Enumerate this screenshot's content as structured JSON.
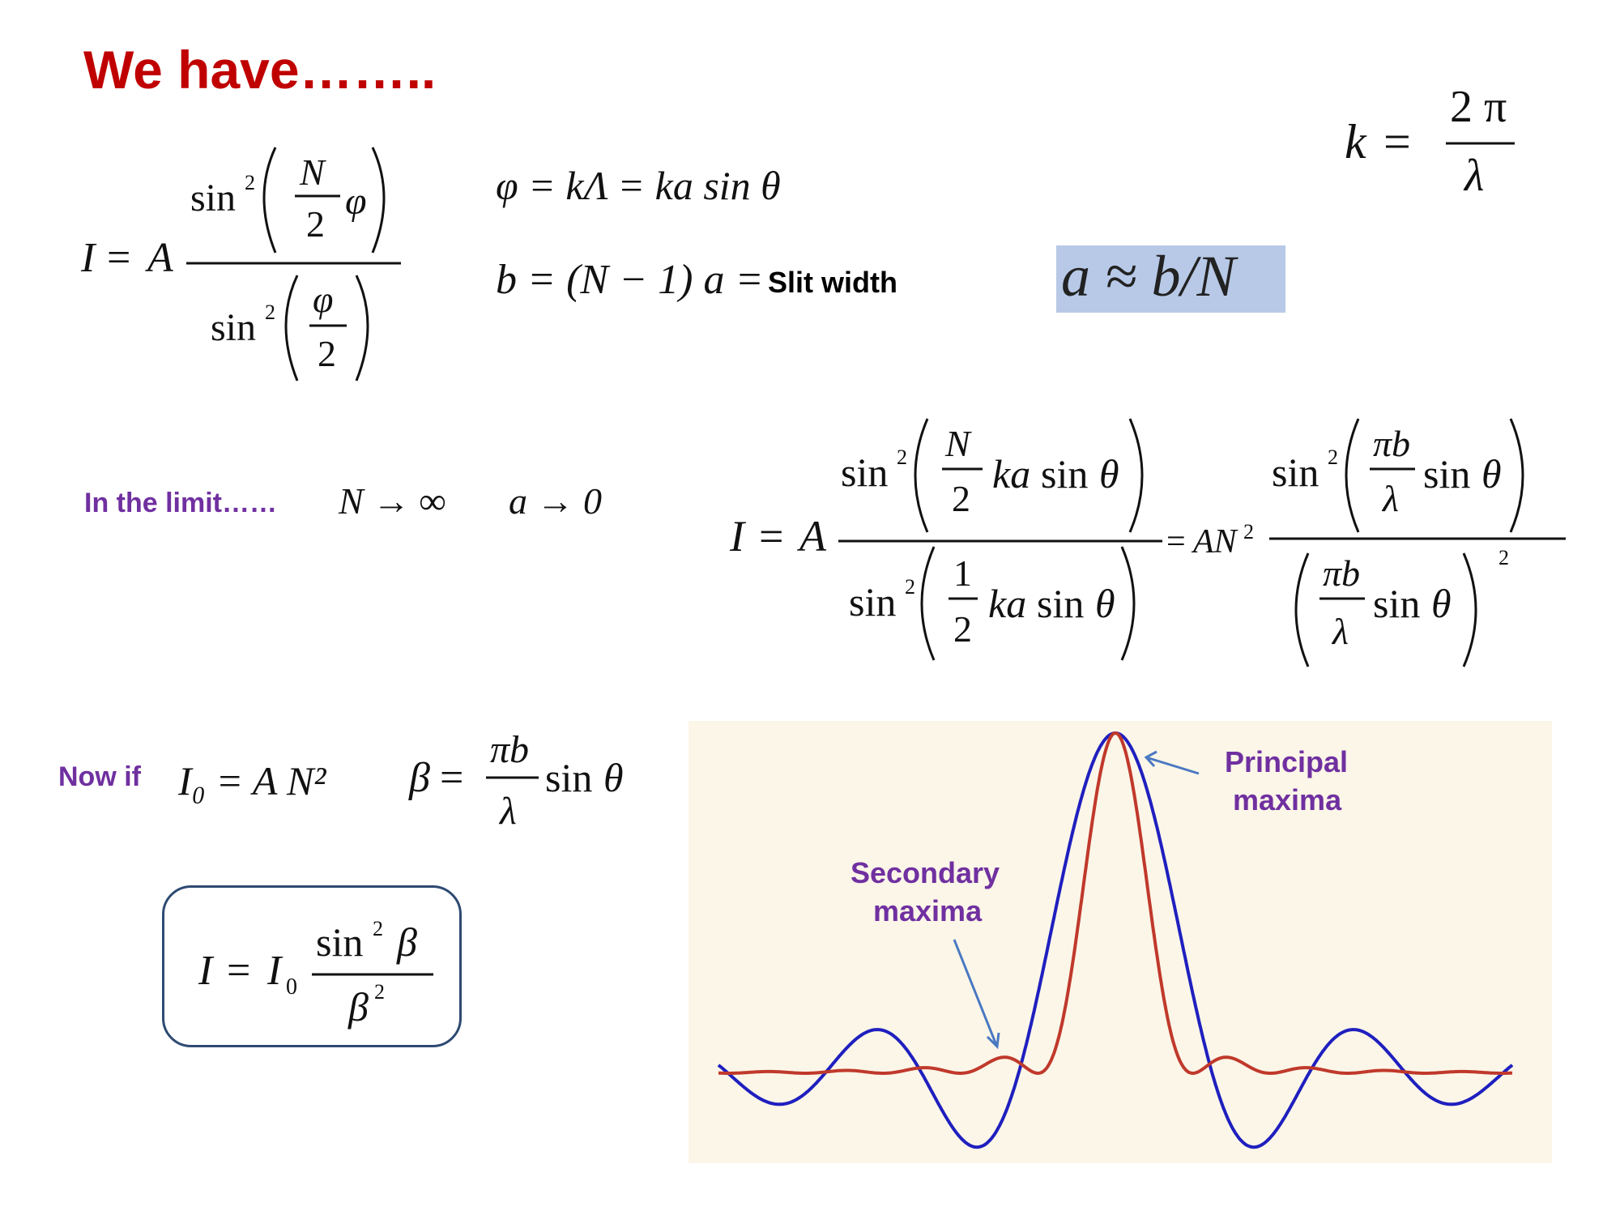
{
  "slide": {
    "heading": "We have……..",
    "equations": {
      "intensity_general": {
        "lhs": "I = A",
        "numerator": "sin²(N/2 · φ)",
        "denominator": "sin²(φ/2)"
      },
      "phi_def": "φ = kΛ = ka sin θ",
      "b_def": "b = (N − 1) a =",
      "b_label": "Slit width",
      "k_def": {
        "lhs": "k =",
        "numerator": "2 π",
        "denominator": "λ"
      },
      "a_approx": "a ≈ b/N",
      "limit_label": "In the limit……",
      "limit_N": "N → ∞",
      "limit_a": "a → 0",
      "intensity_limit": {
        "lhs": "I = A",
        "num1": "sin²(N/2 · ka sin θ)",
        "den1": "sin²(1/2 · ka sin θ)",
        "mid": "= AN²",
        "num2": "sin²(πb/λ · sin θ)",
        "den2": "(πb/λ · sin θ)²"
      },
      "nowif_label": "Now if",
      "I0_def": "I₀ = A N²",
      "beta_def": {
        "lhs": "β =",
        "numerator": "πb",
        "denominator": "λ",
        "trail": "sin θ"
      },
      "boxed": {
        "lhs": "I = I₀",
        "numerator": "sin² β",
        "denominator": "β²"
      }
    },
    "plot": {
      "labels": {
        "principal_line1": "Principal",
        "principal_line2": "maxima",
        "secondary_line1": "Secondary",
        "secondary_line2": "maxima"
      },
      "colors": {
        "blue_curve": "#1f1fbf",
        "red_curve": "#c0392b",
        "arrow": "#4a78c2",
        "background": "#fbf6e8"
      }
    }
  }
}
